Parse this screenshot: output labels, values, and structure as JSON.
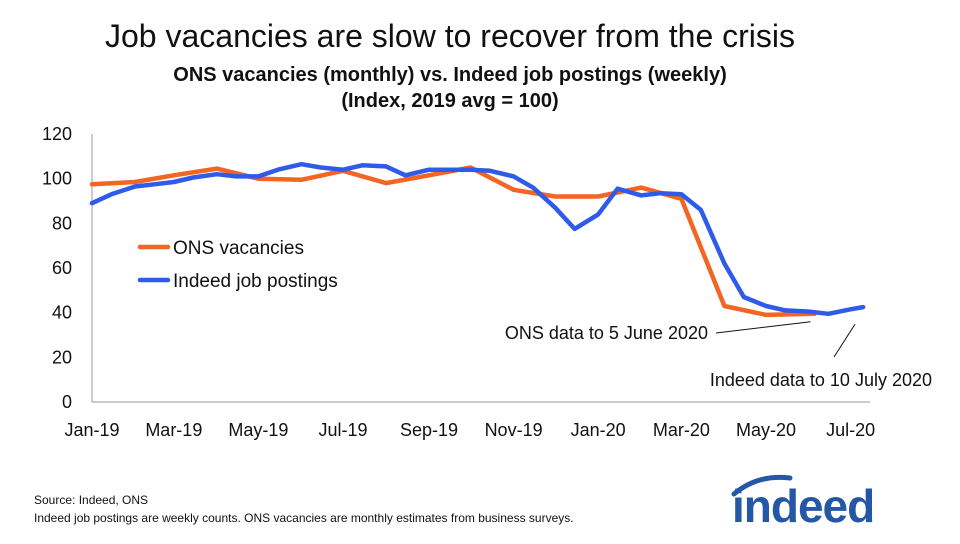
{
  "header": {
    "title": "Job vacancies are slow to recover from the crisis",
    "subtitle_line1": "ONS vacancies (monthly) vs. Indeed job postings (weekly)",
    "subtitle_line2": "(Index, 2019 avg = 100)"
  },
  "footer": {
    "source": "Source: Indeed, ONS",
    "note": "Indeed job postings are weekly counts. ONS vacancies are monthly estimates from business surveys."
  },
  "logo": {
    "text": "indeed",
    "color": "#2557a7"
  },
  "chart_data": {
    "type": "line",
    "title": "",
    "xlabel": "",
    "ylabel": "",
    "ylim": [
      0,
      120
    ],
    "yticks": [
      0,
      20,
      40,
      60,
      80,
      100,
      120
    ],
    "xlim": [
      "2019-01-01",
      "2020-07-15"
    ],
    "xticks": [
      "2019-01-01",
      "2019-03-01",
      "2019-05-01",
      "2019-07-01",
      "2019-09-01",
      "2019-11-01",
      "2020-01-01",
      "2020-03-01",
      "2020-05-01",
      "2020-07-01"
    ],
    "xtick_labels": [
      "Jan-19",
      "Mar-19",
      "May-19",
      "Jul-19",
      "Sep-19",
      "Nov-19",
      "Jan-20",
      "Mar-20",
      "May-20",
      "Jul-20"
    ],
    "grid": false,
    "legend_position": "center-left",
    "series": [
      {
        "name": "ONS vacancies",
        "color": "#f26522",
        "x": [
          "2019-01-01",
          "2019-02-01",
          "2019-03-01",
          "2019-04-01",
          "2019-05-01",
          "2019-06-01",
          "2019-07-01",
          "2019-08-01",
          "2019-09-01",
          "2019-10-01",
          "2019-11-01",
          "2019-12-01",
          "2020-01-01",
          "2020-02-01",
          "2020-03-01",
          "2020-04-01",
          "2020-05-01",
          "2020-06-05"
        ],
        "y": [
          97.5,
          98.5,
          101.5,
          104.5,
          100,
          99.5,
          103.5,
          98,
          101.5,
          105,
          95,
          92,
          92,
          96,
          91,
          43,
          39,
          39.5
        ]
      },
      {
        "name": "Indeed job postings",
        "color": "#2f5bea",
        "x": [
          "2019-01-01",
          "2019-01-15",
          "2019-02-01",
          "2019-02-15",
          "2019-03-01",
          "2019-03-15",
          "2019-04-01",
          "2019-04-15",
          "2019-05-01",
          "2019-05-15",
          "2019-06-01",
          "2019-06-15",
          "2019-07-01",
          "2019-07-15",
          "2019-08-01",
          "2019-08-15",
          "2019-09-01",
          "2019-09-15",
          "2019-10-01",
          "2019-10-15",
          "2019-11-01",
          "2019-11-15",
          "2019-12-01",
          "2019-12-15",
          "2020-01-01",
          "2020-01-15",
          "2020-02-01",
          "2020-02-15",
          "2020-03-01",
          "2020-03-15",
          "2020-04-01",
          "2020-04-15",
          "2020-05-01",
          "2020-05-15",
          "2020-06-01",
          "2020-06-15",
          "2020-07-01",
          "2020-07-10"
        ],
        "y": [
          89,
          93,
          96.5,
          97.5,
          98.5,
          100.5,
          102,
          101,
          101,
          104,
          106.5,
          105,
          104,
          106,
          105.5,
          101.5,
          104,
          104,
          104,
          103.5,
          101,
          96,
          87,
          77.5,
          84,
          95.5,
          92.5,
          93.5,
          93,
          86,
          62,
          47,
          43,
          41,
          40.5,
          39.5,
          41.5,
          42.5
        ]
      }
    ],
    "annotations": [
      {
        "text": "ONS data to 5 June 2020",
        "x": "2020-06-05",
        "y": 39.5
      },
      {
        "text": "Indeed data to 10 July 2020",
        "x": "2020-07-10",
        "y": 42.5
      }
    ]
  }
}
